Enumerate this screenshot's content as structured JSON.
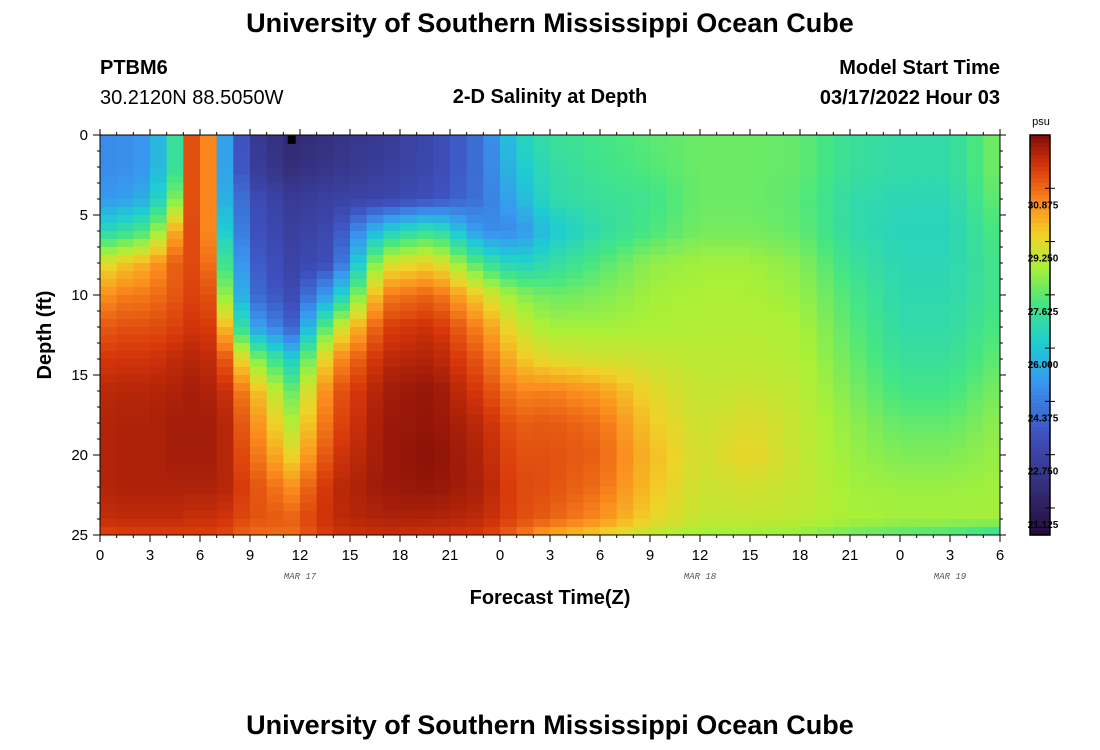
{
  "header": {
    "title": "University of Southern Mississippi Ocean Cube",
    "station_id": "PTBM6",
    "station_coords": "30.2120N  88.5050W",
    "model_start_label": "Model Start Time",
    "model_start_value": "03/17/2022 Hour 03",
    "plot_title": "2-D Salinity at Depth"
  },
  "footer": {
    "title": "University of Southern Mississippi Ocean Cube"
  },
  "chart_data": {
    "type": "heatmap",
    "title": "2-D Salinity at Depth",
    "xlabel": "Forecast Time(Z)",
    "ylabel": "Depth (ft)",
    "x_range_hours": [
      0,
      54
    ],
    "y_range_ft": [
      0,
      25
    ],
    "x_tick_labels": [
      "0",
      "3",
      "6",
      "9",
      "12",
      "15",
      "18",
      "21",
      "0",
      "3",
      "6",
      "9",
      "12",
      "15",
      "18",
      "21",
      "0",
      "3",
      "6"
    ],
    "y_tick_labels": [
      "0",
      "5",
      "10",
      "15",
      "20",
      "25"
    ],
    "date_labels": [
      {
        "label": "MAR 17",
        "hour": 12
      },
      {
        "label": "MAR 18",
        "hour": 36
      },
      {
        "label": "MAR 19",
        "hour": 51
      }
    ],
    "colorbar": {
      "unit": "psu",
      "min": 20.3,
      "max": 32.5,
      "tick_labels": [
        "30.875",
        "29.250",
        "27.625",
        "26.000",
        "24.375",
        "22.750",
        "21.125"
      ],
      "tick_values": [
        30.875,
        29.25,
        27.625,
        26.0,
        24.375,
        22.75,
        21.125
      ]
    },
    "marker": {
      "hour": 11.5,
      "depth_ft": 0.3
    },
    "grid_hours": [
      0,
      1,
      3,
      4.5,
      5.5,
      6.5,
      7.5,
      9,
      11.5,
      14,
      17,
      20,
      23,
      25,
      27,
      30,
      33,
      36,
      39,
      42,
      45,
      48,
      51,
      54
    ],
    "grid_depths_ft": [
      0,
      2,
      4,
      6,
      8,
      10,
      12,
      14,
      16,
      18,
      20,
      22,
      24,
      25
    ],
    "salinity_psu": [
      [
        24.7,
        24.7,
        25.0,
        27.0,
        31.2,
        30.5,
        25.2,
        22.5,
        21.6,
        22.0,
        22.4,
        23.0,
        24.2,
        26.3,
        27.0,
        27.3,
        27.6,
        27.8,
        27.8,
        27.7,
        27.0,
        26.8,
        26.8,
        28.0
      ],
      [
        24.7,
        24.7,
        25.0,
        27.0,
        31.2,
        30.5,
        25.2,
        22.6,
        21.8,
        22.2,
        22.5,
        23.0,
        24.2,
        26.0,
        26.8,
        27.2,
        27.5,
        27.8,
        27.8,
        27.7,
        27.0,
        26.8,
        26.8,
        28.0
      ],
      [
        25.0,
        25.0,
        25.6,
        28.0,
        31.2,
        30.5,
        25.5,
        23.3,
        22.4,
        22.7,
        22.9,
        23.3,
        24.2,
        25.5,
        26.7,
        27.0,
        27.2,
        27.8,
        27.8,
        27.6,
        26.8,
        26.6,
        26.6,
        27.8
      ],
      [
        26.5,
        26.8,
        27.5,
        30.0,
        31.3,
        30.5,
        26.2,
        23.5,
        22.6,
        23.1,
        26.2,
        27.2,
        24.7,
        24.7,
        26.0,
        26.8,
        27.4,
        27.9,
        27.9,
        27.7,
        26.8,
        26.5,
        26.5,
        27.5
      ],
      [
        29.0,
        29.5,
        30.0,
        31.0,
        31.3,
        30.8,
        27.2,
        23.8,
        22.8,
        23.3,
        29.0,
        29.5,
        27.2,
        26.3,
        26.8,
        27.5,
        28.2,
        28.4,
        28.4,
        28.1,
        27.1,
        26.6,
        26.6,
        27.3
      ],
      [
        30.2,
        30.6,
        30.7,
        31.1,
        31.4,
        31.2,
        28.2,
        24.1,
        23.1,
        25.5,
        30.6,
        31.0,
        29.3,
        28.2,
        27.8,
        28.0,
        28.4,
        28.5,
        28.5,
        28.3,
        27.4,
        26.7,
        26.7,
        27.3
      ],
      [
        31.0,
        31.2,
        31.2,
        31.4,
        31.6,
        31.5,
        29.8,
        25.5,
        23.8,
        28.5,
        31.4,
        31.7,
        30.4,
        29.0,
        28.4,
        28.4,
        28.5,
        28.6,
        28.6,
        28.5,
        27.6,
        26.8,
        26.8,
        27.5
      ],
      [
        31.5,
        31.6,
        31.6,
        31.8,
        31.9,
        31.8,
        31.1,
        28.5,
        26.3,
        30.2,
        31.8,
        32.0,
        31.0,
        29.7,
        29.2,
        29.0,
        28.9,
        28.7,
        28.7,
        28.6,
        27.8,
        27.0,
        27.0,
        27.7
      ],
      [
        31.8,
        31.9,
        31.9,
        32.0,
        32.1,
        32.0,
        31.7,
        30.2,
        27.8,
        31.0,
        32.1,
        32.3,
        31.4,
        30.5,
        30.6,
        30.2,
        29.3,
        28.8,
        28.9,
        28.7,
        28.0,
        27.3,
        27.3,
        28.0
      ],
      [
        31.9,
        32.0,
        32.0,
        32.1,
        32.1,
        32.1,
        31.9,
        30.7,
        28.6,
        31.2,
        32.2,
        32.3,
        31.8,
        31.0,
        31.1,
        30.8,
        29.6,
        28.9,
        29.2,
        28.8,
        28.2,
        27.7,
        27.7,
        28.2
      ],
      [
        31.9,
        32.0,
        32.0,
        32.1,
        32.1,
        32.1,
        31.9,
        31.0,
        29.4,
        31.5,
        32.2,
        32.4,
        31.9,
        31.2,
        31.2,
        31.0,
        29.8,
        29.0,
        29.4,
        28.8,
        28.3,
        28.0,
        28.0,
        28.3
      ],
      [
        31.9,
        32.0,
        32.0,
        32.0,
        32.0,
        32.0,
        31.9,
        31.3,
        30.4,
        31.8,
        32.2,
        32.3,
        32.0,
        31.3,
        31.2,
        30.8,
        29.7,
        28.9,
        29.0,
        28.8,
        28.4,
        28.3,
        28.3,
        28.4
      ],
      [
        31.7,
        31.8,
        31.8,
        31.8,
        31.7,
        31.7,
        31.6,
        31.2,
        31.0,
        31.8,
        32.0,
        32.0,
        31.8,
        31.3,
        31.0,
        30.4,
        29.4,
        28.8,
        28.8,
        28.7,
        28.5,
        28.4,
        28.4,
        28.4
      ],
      [
        31.3,
        31.4,
        31.4,
        31.4,
        31.4,
        31.4,
        31.3,
        30.8,
        30.8,
        31.6,
        31.7,
        31.6,
        31.5,
        30.8,
        30.0,
        29.4,
        28.7,
        28.3,
        28.3,
        28.2,
        27.8,
        27.5,
        27.3,
        26.8
      ]
    ]
  }
}
